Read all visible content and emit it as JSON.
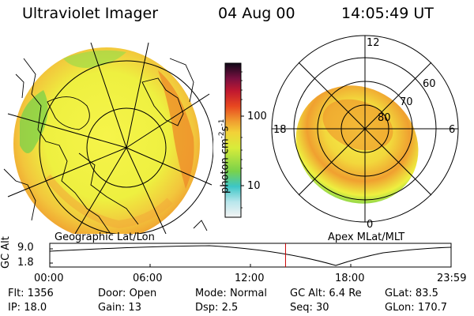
{
  "header": {
    "title": "Ultraviolet Imager",
    "date": "04 Aug 00",
    "time": "14:05:49 UT"
  },
  "left_panel": {
    "label": "Geographic Lat/Lon"
  },
  "right_panel": {
    "label": "Apex MLat/MLT",
    "mlt_labels": [
      "12",
      "18",
      "6",
      "0"
    ],
    "lat_labels": [
      "60",
      "70",
      "80"
    ]
  },
  "colorbar": {
    "unit_label": "photon cm",
    "unit_sup1": "-2",
    "unit_mid": "s",
    "unit_sup2": "-1",
    "tick_100": "100",
    "tick_10": "10"
  },
  "alt_plot": {
    "ylabel": "GC Alt",
    "ymax": "9.0",
    "ymin": "1.8",
    "xticks": [
      "00:00",
      "06:00",
      "12:00",
      "18:00",
      "23:59"
    ],
    "marker_hour": 14.1
  },
  "info": {
    "flt_label": "Flt:",
    "flt": "1356",
    "door_label": "Door:",
    "door": "Open",
    "mode_label": "Mode:",
    "mode": "Normal",
    "gcalt_label": "GC Alt:",
    "gcalt": "6.4 Re",
    "glat_label": "GLat:",
    "glat": "83.5",
    "ip_label": "IP:",
    "ip": "18.0",
    "gain_label": "Gain:",
    "gain": "13",
    "dsp_label": "Dsp:",
    "dsp": "2.5",
    "seq_label": "Seq:",
    "seq": "30",
    "glon_label": "GLon:",
    "glon": "170.7"
  },
  "colors": {
    "outline": "#000000",
    "marker": "#cc0000"
  }
}
